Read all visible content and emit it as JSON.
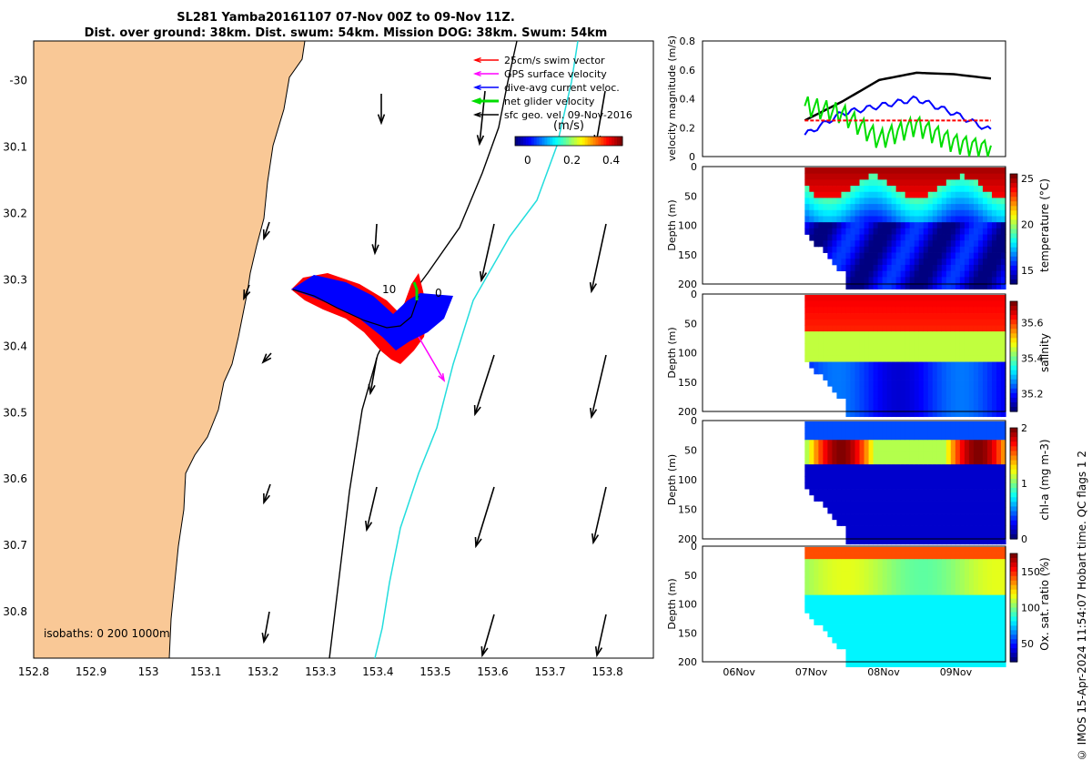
{
  "header": {
    "title_line1": "SL281 Yamba20161107 07-Nov 00Z to 09-Nov 11Z.",
    "title_line2": "Dist. over ground: 38km. Dist. swum: 54km. Mission DOG: 38km. Swum: 54km"
  },
  "colors": {
    "land": "#f9c896",
    "ocean": "#ffffff",
    "track_red": "#ff0000",
    "track_blue": "#0000ff",
    "gps_magenta": "#ff00ff",
    "net_green": "#00dd00",
    "cyan_line": "#22dddd"
  },
  "footer": "© IMOS 15-Apr-2024 11:54:07 Hobart time. QC flags 1  2",
  "chart_data": [
    {
      "type": "map",
      "id": "glider-map",
      "x_ticks": [
        "152.8",
        "152.9",
        "153",
        "153.1",
        "153.2",
        "153.3",
        "153.4",
        "153.5",
        "153.6",
        "153.7",
        "153.8"
      ],
      "y_ticks": [
        "-30",
        "30.1",
        "30.2",
        "30.3",
        "30.4",
        "30.5",
        "30.6",
        "30.7",
        "30.8"
      ],
      "xlim": [
        152.8,
        153.88
      ],
      "ylim": [
        -30.87,
        -29.94
      ],
      "legend": {
        "position": "top-right",
        "entries": [
          {
            "label": "25cm/s swim vector",
            "color": "#ff0000"
          },
          {
            "label": "GPS surface velocity",
            "color": "#ff00ff"
          },
          {
            "label": "dive-avg current veloc.",
            "color": "#0000ff"
          },
          {
            "label": "net glider velocity",
            "color": "#00dd00"
          },
          {
            "label": "sfc geo. vel. 09-Nov-2016",
            "color": "#000000"
          }
        ]
      },
      "colorbar": {
        "label": "(m/s)",
        "ticks": [
          "0",
          "0.2",
          "0.4"
        ]
      },
      "annotations": [
        "10",
        "0"
      ],
      "isobath_label": "isobaths: 0   200  1000m"
    },
    {
      "type": "line",
      "id": "velocity-panel",
      "ylabel": "velocity magnitude (m/s)",
      "ylim": [
        0,
        0.8
      ],
      "yticks": [
        "0",
        "0.2",
        "0.4",
        "0.6",
        "0.8"
      ],
      "x_days": [
        7.0,
        7.5,
        7.9,
        8.5,
        9.0,
        9.5
      ],
      "series": [
        {
          "color": "#000000",
          "values": [
            0.25,
            0.38,
            0.53,
            0.58,
            0.57,
            0.54
          ]
        },
        {
          "color": "#0000ff",
          "values": [
            0.15,
            0.3,
            0.35,
            0.4,
            0.3,
            0.18
          ]
        },
        {
          "color": "#00dd00",
          "values": [
            0.35,
            0.3,
            0.12,
            0.22,
            0.1,
            0.05
          ]
        },
        {
          "color": "#ff0000",
          "values": [
            0.25,
            0.25,
            0.25,
            0.25,
            0.25,
            0.25
          ]
        }
      ]
    },
    {
      "type": "heatmap",
      "id": "temperature",
      "ylabel": "Depth (m)",
      "yticks": [
        "0",
        "50",
        "100",
        "150",
        "200"
      ],
      "colorbar_label": "temperature (°C)",
      "colorbar_ticks": [
        "15",
        "20",
        "25"
      ],
      "clim": [
        13.5,
        25.5
      ]
    },
    {
      "type": "heatmap",
      "id": "salinity",
      "ylabel": "Depth (m)",
      "yticks": [
        "0",
        "50",
        "100",
        "150",
        "200"
      ],
      "colorbar_label": "salinity",
      "colorbar_ticks": [
        "35.2",
        "35.4",
        "35.6"
      ],
      "clim": [
        35.1,
        35.72
      ]
    },
    {
      "type": "heatmap",
      "id": "chla",
      "ylabel": "Depth (m)",
      "yticks": [
        "0",
        "50",
        "100",
        "150",
        "200"
      ],
      "colorbar_label": "chl-a (mg m-3)",
      "colorbar_ticks": [
        "0",
        "1",
        "2"
      ],
      "clim": [
        0,
        2
      ]
    },
    {
      "type": "heatmap",
      "id": "oxygen",
      "ylabel": "Depth (m)",
      "yticks": [
        "0",
        "50",
        "100",
        "150",
        "200"
      ],
      "colorbar_label": "Ox. sat. ratio (%)",
      "colorbar_ticks": [
        "50",
        "100",
        "150"
      ],
      "clim": [
        25,
        175
      ],
      "x_ticks": [
        "06Nov",
        "07Nov",
        "08Nov",
        "09Nov"
      ]
    }
  ]
}
